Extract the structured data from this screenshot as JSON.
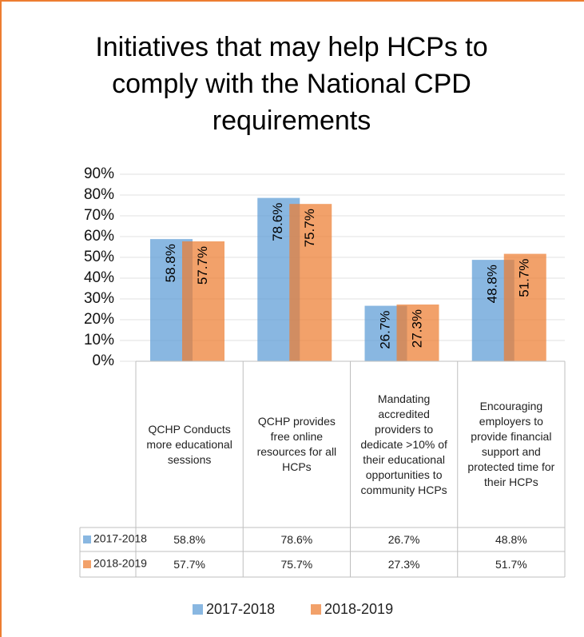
{
  "chart_data": {
    "type": "bar",
    "title": "Initiatives that may help HCPs to comply with the National CPD requirements",
    "categories": [
      "QCHP Conducts more educational sessions",
      "QCHP provides free online resources for all HCPs",
      "Mandating accredited providers to dedicate >10% of their educational opportunities to community HCPs",
      "Encouraging employers to provide financial support and protected time for their HCPs"
    ],
    "series": [
      {
        "name": "2017-2018",
        "color": "#5b9bd5",
        "values": [
          58.8,
          78.6,
          26.7,
          48.8
        ],
        "value_labels": [
          "58.8%",
          "78.6%",
          "26.7%",
          "48.8%"
        ]
      },
      {
        "name": "2018-2019",
        "color": "#ed7d31",
        "values": [
          57.7,
          75.7,
          27.3,
          51.7
        ],
        "value_labels": [
          "57.7%",
          "75.7%",
          "27.3%",
          "51.7%"
        ]
      }
    ],
    "ylim": [
      0,
      90
    ],
    "yticks": [
      {
        "value": 0,
        "label": "0%"
      },
      {
        "value": 10,
        "label": "10%"
      },
      {
        "value": 20,
        "label": "20%"
      },
      {
        "value": 30,
        "label": "30%"
      },
      {
        "value": 40,
        "label": "40%"
      },
      {
        "value": 50,
        "label": "50%"
      },
      {
        "value": 60,
        "label": "60%"
      },
      {
        "value": 70,
        "label": "70%"
      },
      {
        "value": 80,
        "label": "80%"
      },
      {
        "value": 90,
        "label": "90%"
      }
    ],
    "grid": true
  }
}
